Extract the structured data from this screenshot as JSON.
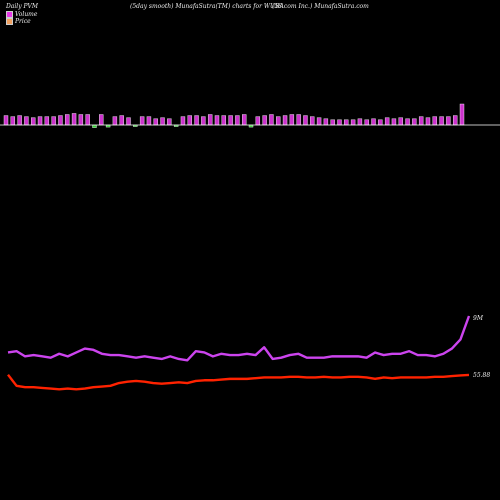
{
  "header": {
    "left": "Daily PVM",
    "middle": "(5day smooth) MunafaSutra(TM) charts for WUBA",
    "right": "(58.com Inc.) MunafaSutra.com"
  },
  "legend": [
    {
      "label": "Volume",
      "color": "#e838e8"
    },
    {
      "label": "Price",
      "color": "#f0a060"
    }
  ],
  "colors": {
    "background": "#000000",
    "volume_up": "#cc33cc",
    "volume_down": "#33cc33",
    "volume_line": "#cc44ee",
    "price_line": "#ff2200",
    "baseline": "#ffffff"
  },
  "chart_data": {
    "type": "bar+line",
    "volume_bars": {
      "up_down": [
        "u",
        "u",
        "u",
        "u",
        "u",
        "u",
        "u",
        "u",
        "u",
        "u",
        "u",
        "u",
        "u",
        "d",
        "u",
        "d",
        "u",
        "u",
        "u",
        "d",
        "u",
        "u",
        "u",
        "u",
        "u",
        "d",
        "u",
        "u",
        "u",
        "u",
        "u",
        "u",
        "u",
        "u",
        "u",
        "u",
        "d",
        "u",
        "u",
        "u",
        "u",
        "u",
        "u",
        "u",
        "u",
        "u",
        "u",
        "u",
        "u",
        "u",
        "u",
        "u",
        "u",
        "u",
        "u",
        "u",
        "u",
        "u",
        "u",
        "u",
        "u",
        "u",
        "u",
        "u",
        "u",
        "u",
        "u",
        "u"
      ],
      "values": [
        9,
        8,
        9,
        8,
        7,
        8,
        8,
        8,
        9,
        10,
        11,
        10,
        10,
        5,
        10,
        4,
        8,
        9,
        7,
        3,
        8,
        8,
        6,
        7,
        6,
        3,
        8,
        9,
        9,
        8,
        10,
        9,
        9,
        9,
        9,
        10,
        4,
        8,
        9,
        10,
        8,
        9,
        10,
        10,
        9,
        8,
        7,
        6,
        5,
        5,
        5,
        5,
        6,
        5,
        6,
        5,
        7,
        6,
        7,
        6,
        6,
        8,
        7,
        8,
        8,
        8,
        9,
        20
      ]
    },
    "volume_line": [
      15,
      16,
      12,
      13,
      12,
      11,
      14,
      12,
      15,
      18,
      17,
      14,
      13,
      13,
      12,
      11,
      12,
      11,
      10,
      12,
      10,
      9,
      16,
      15,
      12,
      14,
      13,
      13,
      14,
      13,
      19,
      10,
      11,
      13,
      14,
      11,
      11,
      11,
      12,
      12,
      12,
      12,
      11,
      15,
      13,
      14,
      14,
      16,
      13,
      13,
      12,
      14,
      18,
      25,
      43
    ],
    "price_line": [
      55.9,
      55.1,
      55.0,
      55.0,
      54.95,
      54.9,
      54.85,
      54.9,
      54.85,
      54.9,
      55.0,
      55.05,
      55.1,
      55.3,
      55.4,
      55.45,
      55.4,
      55.3,
      55.25,
      55.3,
      55.35,
      55.3,
      55.45,
      55.5,
      55.5,
      55.55,
      55.6,
      55.6,
      55.6,
      55.65,
      55.7,
      55.7,
      55.7,
      55.75,
      55.75,
      55.7,
      55.7,
      55.75,
      55.7,
      55.7,
      55.75,
      55.75,
      55.7,
      55.6,
      55.7,
      55.65,
      55.7,
      55.7,
      55.7,
      55.7,
      55.75,
      55.75,
      55.8,
      55.85,
      55.88
    ],
    "annotations": {
      "volume_last": "9M",
      "price_last": "55.88"
    }
  }
}
